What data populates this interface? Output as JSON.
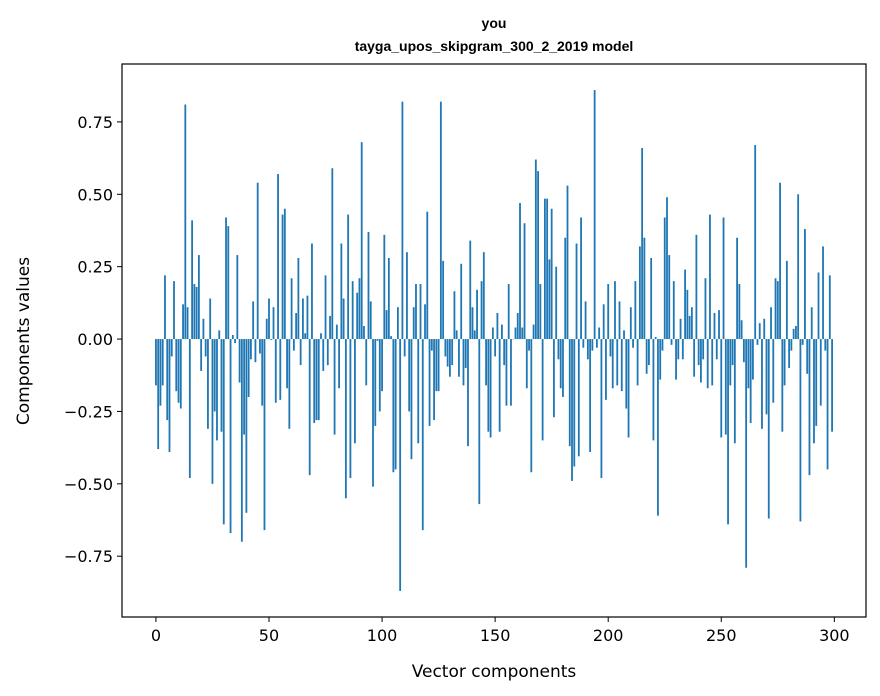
{
  "chart_data": {
    "type": "bar",
    "title": "you",
    "subtitle": "tayga_upos_skipgram_300_2_2019 model",
    "xlabel": "Vector components",
    "ylabel": "Components values",
    "xlim": [
      -15,
      314
    ],
    "ylim": [
      -0.96,
      0.95
    ],
    "grid": false,
    "bar_color": "#1f77b4",
    "xticks": [
      0,
      50,
      100,
      150,
      200,
      250,
      300
    ],
    "xtick_labels": [
      "0",
      "50",
      "100",
      "150",
      "200",
      "250",
      "300"
    ],
    "yticks": [
      -0.75,
      -0.5,
      -0.25,
      0,
      0.25,
      0.5,
      0.75
    ],
    "ytick_labels": [
      "−0.75",
      "−0.50",
      "−0.25",
      "0.00",
      "0.25",
      "0.50",
      "0.75"
    ],
    "values": [
      -0.16,
      -0.38,
      -0.23,
      -0.16,
      0.22,
      -0.28,
      -0.39,
      -0.06,
      0.2,
      -0.18,
      -0.22,
      -0.24,
      0.12,
      0.81,
      0.11,
      -0.48,
      0.41,
      0.19,
      0.18,
      0.29,
      -0.11,
      0.07,
      -0.06,
      -0.31,
      0.14,
      -0.5,
      -0.25,
      -0.35,
      0.03,
      -0.32,
      -0.64,
      0.42,
      0.39,
      -0.67,
      0.014,
      -0.014,
      0.29,
      -0.15,
      -0.7,
      -0.33,
      -0.6,
      -0.2,
      -0.07,
      0.13,
      -0.08,
      0.54,
      -0.05,
      -0.23,
      -0.66,
      0.07,
      0.14,
      -0.003,
      0.11,
      -0.22,
      0.57,
      -0.21,
      0.43,
      0.45,
      -0.17,
      -0.31,
      0.21,
      -0.04,
      0.09,
      0.28,
      -0.09,
      0.14,
      0.02,
      0.15,
      -0.47,
      0.33,
      -0.29,
      -0.28,
      -0.28,
      0.02,
      -0.11,
      0.22,
      -0.09,
      0.08,
      0.59,
      -0.33,
      0.05,
      -0.17,
      0.33,
      0.14,
      -0.55,
      0.43,
      -0.48,
      0.2,
      -0.36,
      0.16,
      0.21,
      0.68,
      0.045,
      -0.16,
      0.37,
      0.13,
      -0.51,
      -0.3,
      -0.006,
      -0.25,
      -0.18,
      0.36,
      0.1,
      0.28,
      0.01,
      -0.46,
      -0.45,
      0.11,
      -0.87,
      0.82,
      -0.06,
      0.3,
      -0.25,
      -0.415,
      0.11,
      0.19,
      -0.36,
      0.19,
      -0.66,
      0.12,
      0.44,
      -0.3,
      -0.04,
      -0.28,
      -0.18,
      -0.18,
      0.82,
      0.27,
      -0.06,
      -0.095,
      -0.13,
      -0.09,
      0.165,
      0.03,
      -0.13,
      0.26,
      -0.16,
      -0.1,
      -0.37,
      0.34,
      0.11,
      0.03,
      0.17,
      -0.57,
      0.2,
      0.3,
      -0.16,
      -0.32,
      -0.34,
      0.04,
      -0.06,
      0.09,
      -0.32,
      0.05,
      -0.09,
      -0.23,
      0.19,
      -0.23,
      0.0,
      0.04,
      0.09,
      0.47,
      0.04,
      0.4,
      -0.17,
      -0.04,
      -0.46,
      0.05,
      0.62,
      0.58,
      0.19,
      -0.35,
      0.485,
      0.485,
      0.275,
      0.45,
      -0.27,
      0.25,
      -0.07,
      -0.17,
      -0.2,
      0.35,
      0.53,
      -0.37,
      -0.49,
      -0.44,
      0.33,
      -0.405,
      0.42,
      -0.03,
      0.13,
      -0.07,
      -0.39,
      -0.04,
      0.86,
      -0.03,
      0.04,
      -0.48,
      0.12,
      -0.21,
      0.19,
      -0.06,
      -0.17,
      0.2,
      -0.16,
      0.13,
      -0.18,
      0.03,
      -0.24,
      -0.34,
      0.11,
      -0.03,
      0.2,
      -0.16,
      0.32,
      0.66,
      0.35,
      -0.12,
      -0.09,
      0.28,
      -0.35,
      0.007,
      -0.61,
      -0.14,
      -0.04,
      0.42,
      0.49,
      0.29,
      -0.02,
      0.2,
      -0.14,
      -0.07,
      0.07,
      -0.07,
      0.24,
      0.17,
      0.08,
      0.11,
      -0.13,
      0.36,
      -0.09,
      -0.15,
      -0.07,
      0.21,
      -0.17,
      0.43,
      -0.16,
      0.09,
      -0.07,
      0.1,
      -0.34,
      0.42,
      -0.33,
      -0.64,
      -0.16,
      -0.09,
      -0.36,
      0.35,
      0.19,
      0.065,
      -0.08,
      -0.79,
      -0.17,
      -0.29,
      -0.14,
      0.67,
      -0.02,
      0.055,
      -0.31,
      0.07,
      -0.26,
      -0.62,
      0.11,
      -0.22,
      0.21,
      0.2,
      0.54,
      -0.32,
      -0.16,
      0.27,
      -0.1,
      -0.04,
      0.035,
      0.045,
      0.5,
      -0.63,
      -0.02,
      0.38,
      -0.12,
      -0.47,
      0.11,
      -0.36,
      -0.3,
      0.23,
      -0.23,
      0.32,
      -0.04,
      -0.45,
      0.22,
      -0.32
    ]
  }
}
